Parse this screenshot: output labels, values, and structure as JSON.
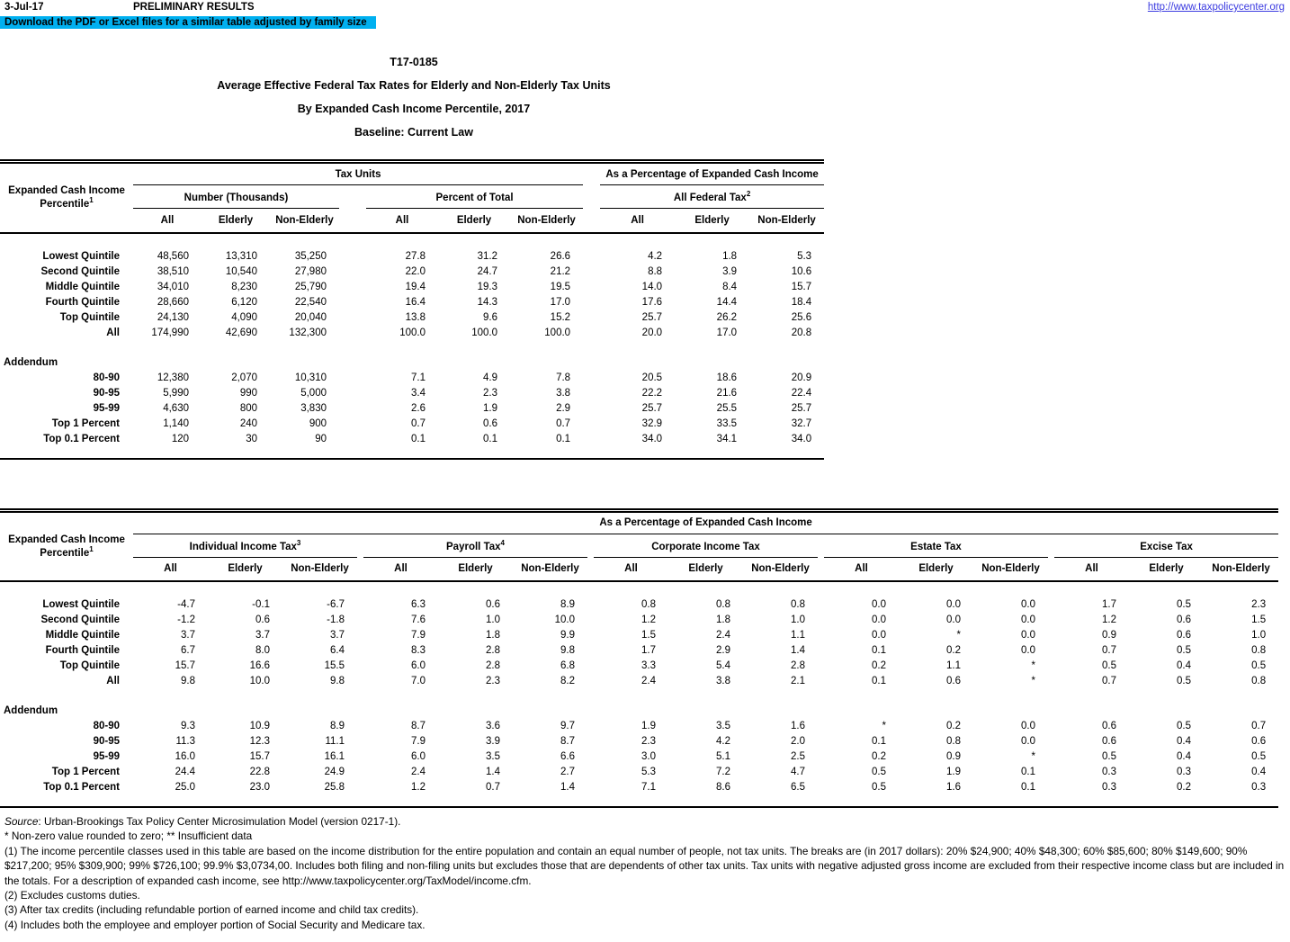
{
  "page": {
    "date": "3-Jul-17",
    "preliminary": "PRELIMINARY RESULTS",
    "download_note": "Download the PDF or Excel files for a similar table adjusted by family size",
    "site_link": "http://www.taxpolicycenter.org",
    "highlight_color": "#00B0F0",
    "link_color": "#3b3be0"
  },
  "titles": {
    "code": "T17-0185",
    "line1": "Average Effective Federal Tax Rates for Elderly and Non-Elderly Tax Units",
    "line2": "By Expanded Cash Income Percentile, 2017",
    "line3": "Baseline: Current Law"
  },
  "table1": {
    "row_header": {
      "line1": "Expanded Cash Income",
      "line2": "Percentile",
      "sup": "1"
    },
    "span_tax_units": "Tax Units",
    "span_pct": "As a Percentage of Expanded Cash Income",
    "groups": [
      {
        "label": "Number (Thousands)",
        "sup": ""
      },
      {
        "label": "Percent of Total",
        "sup": ""
      },
      {
        "label": "All Federal Tax",
        "sup": "2"
      }
    ],
    "subcols": [
      "All",
      "Elderly",
      "Non-Elderly"
    ],
    "rows": [
      {
        "label": "Lowest Quintile",
        "values": [
          "48,560",
          "13,310",
          "35,250",
          "27.8",
          "31.2",
          "26.6",
          "4.2",
          "1.8",
          "5.3"
        ]
      },
      {
        "label": "Second Quintile",
        "values": [
          "38,510",
          "10,540",
          "27,980",
          "22.0",
          "24.7",
          "21.2",
          "8.8",
          "3.9",
          "10.6"
        ]
      },
      {
        "label": "Middle Quintile",
        "values": [
          "34,010",
          "8,230",
          "25,790",
          "19.4",
          "19.3",
          "19.5",
          "14.0",
          "8.4",
          "15.7"
        ]
      },
      {
        "label": "Fourth Quintile",
        "values": [
          "28,660",
          "6,120",
          "22,540",
          "16.4",
          "14.3",
          "17.0",
          "17.6",
          "14.4",
          "18.4"
        ]
      },
      {
        "label": "Top Quintile",
        "values": [
          "24,130",
          "4,090",
          "20,040",
          "13.8",
          "9.6",
          "15.2",
          "25.7",
          "26.2",
          "25.6"
        ]
      },
      {
        "label": "All",
        "values": [
          "174,990",
          "42,690",
          "132,300",
          "100.0",
          "100.0",
          "100.0",
          "20.0",
          "17.0",
          "20.8"
        ]
      }
    ],
    "addendum_label": "Addendum",
    "addendum_rows": [
      {
        "label": "80-90",
        "values": [
          "12,380",
          "2,070",
          "10,310",
          "7.1",
          "4.9",
          "7.8",
          "20.5",
          "18.6",
          "20.9"
        ]
      },
      {
        "label": "90-95",
        "values": [
          "5,990",
          "990",
          "5,000",
          "3.4",
          "2.3",
          "3.8",
          "22.2",
          "21.6",
          "22.4"
        ]
      },
      {
        "label": "95-99",
        "values": [
          "4,630",
          "800",
          "3,830",
          "2.6",
          "1.9",
          "2.9",
          "25.7",
          "25.5",
          "25.7"
        ]
      },
      {
        "label": "Top 1 Percent",
        "values": [
          "1,140",
          "240",
          "900",
          "0.7",
          "0.6",
          "0.7",
          "32.9",
          "33.5",
          "32.7"
        ]
      },
      {
        "label": "Top 0.1 Percent",
        "values": [
          "120",
          "30",
          "90",
          "0.1",
          "0.1",
          "0.1",
          "34.0",
          "34.1",
          "34.0"
        ]
      }
    ]
  },
  "table2": {
    "row_header": {
      "line1": "Expanded Cash Income",
      "line2": "Percentile",
      "sup": "1"
    },
    "span_pct": "As a Percentage of Expanded Cash Income",
    "groups": [
      {
        "label": "Individual Income Tax",
        "sup": "3"
      },
      {
        "label": "Payroll Tax",
        "sup": "4"
      },
      {
        "label": "Corporate Income Tax",
        "sup": ""
      },
      {
        "label": "Estate Tax",
        "sup": ""
      },
      {
        "label": "Excise Tax",
        "sup": ""
      }
    ],
    "subcols": [
      "All",
      "Elderly",
      "Non-Elderly"
    ],
    "rows": [
      {
        "label": "Lowest Quintile",
        "values": [
          "-4.7",
          "-0.1",
          "-6.7",
          "6.3",
          "0.6",
          "8.9",
          "0.8",
          "0.8",
          "0.8",
          "0.0",
          "0.0",
          "0.0",
          "1.7",
          "0.5",
          "2.3"
        ]
      },
      {
        "label": "Second Quintile",
        "values": [
          "-1.2",
          "0.6",
          "-1.8",
          "7.6",
          "1.0",
          "10.0",
          "1.2",
          "1.8",
          "1.0",
          "0.0",
          "0.0",
          "0.0",
          "1.2",
          "0.6",
          "1.5"
        ]
      },
      {
        "label": "Middle Quintile",
        "values": [
          "3.7",
          "3.7",
          "3.7",
          "7.9",
          "1.8",
          "9.9",
          "1.5",
          "2.4",
          "1.1",
          "0.0",
          "*",
          "0.0",
          "0.9",
          "0.6",
          "1.0"
        ]
      },
      {
        "label": "Fourth Quintile",
        "values": [
          "6.7",
          "8.0",
          "6.4",
          "8.3",
          "2.8",
          "9.8",
          "1.7",
          "2.9",
          "1.4",
          "0.1",
          "0.2",
          "0.0",
          "0.7",
          "0.5",
          "0.8"
        ]
      },
      {
        "label": "Top Quintile",
        "values": [
          "15.7",
          "16.6",
          "15.5",
          "6.0",
          "2.8",
          "6.8",
          "3.3",
          "5.4",
          "2.8",
          "0.2",
          "1.1",
          "*",
          "0.5",
          "0.4",
          "0.5"
        ]
      },
      {
        "label": "All",
        "values": [
          "9.8",
          "10.0",
          "9.8",
          "7.0",
          "2.3",
          "8.2",
          "2.4",
          "3.8",
          "2.1",
          "0.1",
          "0.6",
          "*",
          "0.7",
          "0.5",
          "0.8"
        ]
      }
    ],
    "addendum_label": "Addendum",
    "addendum_rows": [
      {
        "label": "80-90",
        "values": [
          "9.3",
          "10.9",
          "8.9",
          "8.7",
          "3.6",
          "9.7",
          "1.9",
          "3.5",
          "1.6",
          "*",
          "0.2",
          "0.0",
          "0.6",
          "0.5",
          "0.7"
        ]
      },
      {
        "label": "90-95",
        "values": [
          "11.3",
          "12.3",
          "11.1",
          "7.9",
          "3.9",
          "8.7",
          "2.3",
          "4.2",
          "2.0",
          "0.1",
          "0.8",
          "0.0",
          "0.6",
          "0.4",
          "0.6"
        ]
      },
      {
        "label": "95-99",
        "values": [
          "16.0",
          "15.7",
          "16.1",
          "6.0",
          "3.5",
          "6.6",
          "3.0",
          "5.1",
          "2.5",
          "0.2",
          "0.9",
          "*",
          "0.5",
          "0.4",
          "0.5"
        ]
      },
      {
        "label": "Top 1 Percent",
        "values": [
          "24.4",
          "22.8",
          "24.9",
          "2.4",
          "1.4",
          "2.7",
          "5.3",
          "7.2",
          "4.7",
          "0.5",
          "1.9",
          "0.1",
          "0.3",
          "0.3",
          "0.4"
        ]
      },
      {
        "label": "Top 0.1 Percent",
        "values": [
          "25.0",
          "23.0",
          "25.8",
          "1.2",
          "0.7",
          "1.4",
          "7.1",
          "8.6",
          "6.5",
          "0.5",
          "1.6",
          "0.1",
          "0.3",
          "0.2",
          "0.3"
        ]
      }
    ]
  },
  "footnotes": {
    "source_label": "Source",
    "source_rest": ": Urban-Brookings Tax Policy Center Microsimulation Model (version 0217-1).",
    "stars": "* Non-zero value rounded to zero; ** Insufficient data",
    "fn1": "(1) The income percentile classes used in this table are based on the income distribution for the entire population and contain an equal number of people, not tax units. The breaks are (in 2017 dollars): 20% $24,900; 40% $48,300; 60% $85,600; 80% $149,600; 90% $217,200; 95% $309,900; 99% $726,100; 99.9% $3,0734,00. Includes both filing and non-filing units but excludes those that are dependents of other tax units. Tax units with negative adjusted gross income are excluded from their respective income class but are included in the totals. For a description of expanded cash income, see http://www.taxpolicycenter.org/TaxModel/income.cfm.",
    "fn2": "(2) Excludes customs duties.",
    "fn3": "(3) After tax credits (including refundable portion of earned income and child tax credits).",
    "fn4": "(4) Includes both the employee and employer portion of Social Security and Medicare tax."
  }
}
